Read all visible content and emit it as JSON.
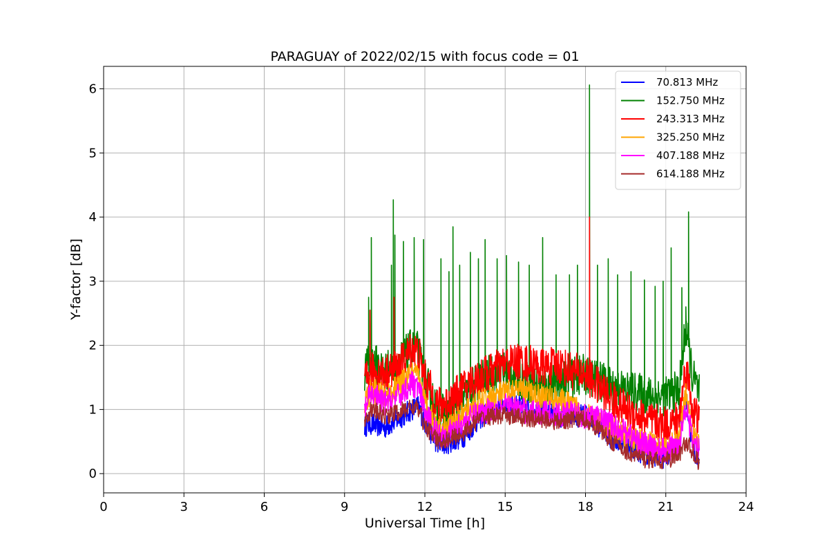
{
  "chart_data": {
    "type": "line",
    "title": "PARAGUAY of 2022/02/15 with focus code = 01",
    "xlabel": "Universal Time [h]",
    "ylabel": "Y-factor [dB]",
    "xlim": [
      0,
      24
    ],
    "ylim": [
      -0.3,
      6.35
    ],
    "xticks": [
      0,
      3,
      6,
      9,
      12,
      15,
      18,
      21,
      24
    ],
    "yticks": [
      0,
      1,
      2,
      3,
      4,
      5,
      6
    ],
    "grid": true,
    "legend_position": "top-right",
    "series": [
      {
        "name": " 70.813 MHz",
        "color": "#0000ff",
        "x": [
          9.75,
          10.0,
          10.5,
          11.0,
          11.5,
          11.75,
          12.0,
          12.5,
          13.0,
          13.5,
          14.0,
          14.5,
          15.0,
          15.5,
          16.0,
          16.5,
          17.0,
          17.5,
          18.0,
          18.5,
          19.0,
          19.5,
          20.0,
          20.5,
          21.0,
          21.5,
          21.75,
          22.0,
          22.25
        ],
        "y": [
          0.75,
          0.78,
          0.72,
          0.85,
          1.0,
          1.05,
          0.8,
          0.45,
          0.5,
          0.6,
          0.85,
          1.0,
          1.1,
          1.05,
          1.0,
          0.95,
          0.9,
          0.9,
          0.9,
          0.75,
          0.55,
          0.45,
          0.35,
          0.3,
          0.25,
          0.55,
          1.2,
          0.4,
          0.2
        ],
        "spikes": []
      },
      {
        "name": "152.750 MHz",
        "color": "#008000",
        "x": [
          9.75,
          10.0,
          10.5,
          11.0,
          11.5,
          11.75,
          12.0,
          12.5,
          13.0,
          13.5,
          14.0,
          14.5,
          15.0,
          15.5,
          16.0,
          16.5,
          17.0,
          17.5,
          18.0,
          18.5,
          19.0,
          19.5,
          20.0,
          20.5,
          21.0,
          21.5,
          21.75,
          22.0,
          22.25
        ],
        "y": [
          1.6,
          1.75,
          1.6,
          1.7,
          1.95,
          1.9,
          1.45,
          0.95,
          0.9,
          1.2,
          1.45,
          1.55,
          1.6,
          1.5,
          1.4,
          1.35,
          1.45,
          1.5,
          1.55,
          1.45,
          1.35,
          1.3,
          1.25,
          1.2,
          1.2,
          1.3,
          2.3,
          1.5,
          1.25
        ],
        "spikes": [
          [
            9.9,
            2.75
          ],
          [
            10.0,
            3.68
          ],
          [
            10.75,
            3.25
          ],
          [
            10.82,
            4.27
          ],
          [
            10.88,
            3.72
          ],
          [
            11.2,
            3.62
          ],
          [
            11.6,
            3.68
          ],
          [
            11.95,
            3.65
          ],
          [
            12.6,
            3.35
          ],
          [
            12.9,
            3.15
          ],
          [
            13.05,
            3.85
          ],
          [
            13.3,
            3.25
          ],
          [
            13.7,
            3.45
          ],
          [
            14.0,
            3.35
          ],
          [
            14.25,
            3.65
          ],
          [
            14.7,
            3.35
          ],
          [
            15.05,
            3.4
          ],
          [
            15.5,
            3.3
          ],
          [
            15.9,
            3.25
          ],
          [
            16.4,
            3.68
          ],
          [
            16.9,
            3.1
          ],
          [
            17.4,
            3.1
          ],
          [
            17.7,
            3.25
          ],
          [
            18.15,
            6.06
          ],
          [
            18.45,
            3.25
          ],
          [
            18.85,
            3.35
          ],
          [
            19.2,
            3.1
          ],
          [
            19.7,
            3.15
          ],
          [
            20.2,
            3.02
          ],
          [
            20.6,
            2.92
          ],
          [
            20.9,
            3.0
          ],
          [
            21.2,
            3.52
          ],
          [
            21.6,
            2.9
          ],
          [
            21.75,
            2.6
          ],
          [
            21.85,
            4.08
          ]
        ]
      },
      {
        "name": "243.313 MHz",
        "color": "#ff0000",
        "x": [
          9.75,
          10.0,
          10.5,
          11.0,
          11.5,
          11.75,
          12.0,
          12.5,
          13.0,
          13.5,
          14.0,
          14.5,
          15.0,
          15.5,
          16.0,
          16.5,
          17.0,
          17.5,
          18.0,
          18.5,
          19.0,
          19.5,
          20.0,
          20.5,
          21.0,
          21.5,
          21.75,
          22.0,
          22.25
        ],
        "y": [
          1.4,
          1.6,
          1.55,
          1.65,
          1.95,
          1.9,
          1.5,
          1.05,
          1.15,
          1.35,
          1.5,
          1.6,
          1.7,
          1.75,
          1.7,
          1.65,
          1.7,
          1.6,
          1.55,
          1.35,
          1.15,
          1.0,
          0.9,
          0.8,
          0.75,
          0.85,
          1.7,
          1.0,
          0.8
        ],
        "spikes": [
          [
            9.95,
            2.55
          ],
          [
            10.85,
            2.75
          ],
          [
            18.15,
            4.0
          ]
        ]
      },
      {
        "name": "325.250 MHz",
        "color": "#ffa500",
        "x": [
          9.75,
          10.0,
          10.5,
          11.0,
          11.5,
          11.75,
          12.0,
          12.5,
          13.0,
          13.5,
          14.0,
          14.5,
          15.0,
          15.5,
          16.0,
          16.5,
          17.0,
          17.5,
          18.0,
          18.5,
          19.0,
          19.5,
          20.0,
          20.5,
          21.0,
          21.5,
          21.75,
          22.0,
          22.25
        ],
        "y": [
          1.1,
          1.3,
          1.2,
          1.35,
          1.55,
          1.5,
          1.1,
          0.7,
          0.75,
          0.95,
          1.1,
          1.2,
          1.25,
          1.3,
          1.25,
          1.2,
          1.15,
          1.05,
          0.95,
          0.8,
          0.7,
          0.6,
          0.5,
          0.45,
          0.4,
          0.5,
          1.3,
          0.6,
          0.45
        ],
        "spikes": []
      },
      {
        "name": "407.188 MHz",
        "color": "#ff00ff",
        "x": [
          9.75,
          10.0,
          10.5,
          11.0,
          11.5,
          11.75,
          12.0,
          12.5,
          13.0,
          13.5,
          14.0,
          14.5,
          15.0,
          15.5,
          16.0,
          16.5,
          17.0,
          17.5,
          18.0,
          18.5,
          19.0,
          19.5,
          20.0,
          20.5,
          21.0,
          21.5,
          21.75,
          22.0,
          22.25
        ],
        "y": [
          1.0,
          1.25,
          1.1,
          1.2,
          1.4,
          1.35,
          0.95,
          0.6,
          0.65,
          0.8,
          0.95,
          1.0,
          1.05,
          1.0,
          0.95,
          0.95,
          0.9,
          0.95,
          0.9,
          0.85,
          0.75,
          0.65,
          0.5,
          0.4,
          0.35,
          0.45,
          1.1,
          0.5,
          0.35
        ],
        "spikes": []
      },
      {
        "name": "614.188 MHz",
        "color": "#a52a2a",
        "x": [
          9.75,
          10.0,
          10.5,
          11.0,
          11.5,
          11.75,
          12.0,
          12.5,
          13.0,
          13.5,
          14.0,
          14.5,
          15.0,
          15.5,
          16.0,
          16.5,
          17.0,
          17.5,
          18.0,
          18.5,
          19.0,
          19.5,
          20.0,
          20.5,
          21.0,
          21.5,
          21.75,
          22.0,
          22.25
        ],
        "y": [
          0.85,
          1.0,
          0.9,
          0.95,
          1.05,
          1.0,
          0.75,
          0.5,
          0.55,
          0.65,
          0.85,
          0.9,
          0.9,
          0.88,
          0.85,
          0.85,
          0.8,
          0.85,
          0.85,
          0.7,
          0.5,
          0.35,
          0.25,
          0.2,
          0.2,
          0.3,
          0.5,
          0.35,
          0.15
        ],
        "spikes": []
      }
    ]
  }
}
